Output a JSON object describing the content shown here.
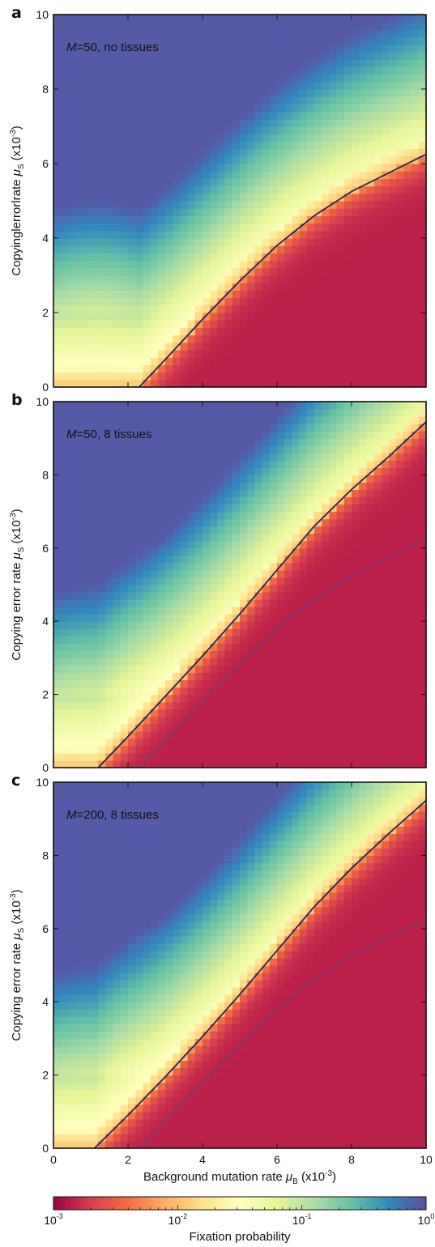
{
  "figure": {
    "colorbar": {
      "label": "Fixation probability",
      "tick_labels": [
        {
          "base": "10",
          "exp": "-3",
          "value": 0.001
        },
        {
          "base": "10",
          "exp": "-2",
          "value": 0.01
        },
        {
          "base": "10",
          "exp": "-1",
          "value": 0.1
        },
        {
          "base": "10",
          "exp": "0",
          "value": 1
        }
      ],
      "scale": "log",
      "range": [
        0.001,
        1
      ],
      "colormap": [
        "#9e0142",
        "#d53e4f",
        "#f46d43",
        "#fdae61",
        "#fee08b",
        "#ffffbf",
        "#e6f598",
        "#abdda4",
        "#66c2a5",
        "#3288bd",
        "#5e4fa2"
      ]
    }
  },
  "chart_data": [
    {
      "type": "heatmap",
      "panel_letter": "a",
      "annotation": {
        "italic": "M",
        "text": "=50, no tissues"
      },
      "xlabel": "",
      "ylabel": {
        "pre": "Copyinglerrorlrate ",
        "sym": "μ",
        "sub": "S",
        "mid": " (x10",
        "sup": "-3",
        "post": ")"
      },
      "xlim": [
        0,
        10
      ],
      "ylim": [
        0,
        10
      ],
      "xticks": [
        "0",
        "2",
        "4",
        "6",
        "8",
        "10"
      ],
      "yticks": [
        "0",
        "2",
        "4",
        "6",
        "8",
        "10"
      ],
      "show_xtick_labels": false,
      "solid_curve": {
        "x": [
          2.3,
          3,
          4,
          5,
          6,
          7,
          8,
          9,
          10
        ],
        "y": [
          0,
          0.74,
          1.82,
          2.85,
          3.8,
          4.6,
          5.25,
          5.75,
          6.25
        ]
      },
      "dashed_curve": null
    },
    {
      "type": "heatmap",
      "panel_letter": "b",
      "annotation": {
        "italic": "M",
        "text": "=50, 8 tissues"
      },
      "xlabel": "",
      "ylabel": {
        "pre": "Copying error rate ",
        "sym": "μ",
        "sub": "S",
        "mid": " (x10",
        "sup": "-3",
        "post": ")"
      },
      "xlim": [
        0,
        10
      ],
      "ylim": [
        0,
        10
      ],
      "xticks": [
        "0",
        "2",
        "4",
        "6",
        "8",
        "10"
      ],
      "yticks": [
        "0",
        "2",
        "4",
        "6",
        "8",
        "10"
      ],
      "show_xtick_labels": false,
      "solid_curve": {
        "x": [
          1.2,
          2,
          3,
          4,
          5,
          6,
          7,
          8,
          9,
          10
        ],
        "y": [
          0,
          0.85,
          1.95,
          3.05,
          4.2,
          5.4,
          6.6,
          7.6,
          8.5,
          9.45
        ]
      },
      "dashed_curve": {
        "x": [
          2.3,
          3,
          4,
          5,
          6,
          7,
          8,
          9,
          10
        ],
        "y": [
          0,
          0.74,
          1.82,
          2.85,
          3.8,
          4.6,
          5.25,
          5.75,
          6.25
        ]
      }
    },
    {
      "type": "heatmap",
      "panel_letter": "c",
      "annotation": {
        "italic": "M",
        "text": "=200, 8 tissues"
      },
      "xlabel": {
        "pre": "Background mutation rate ",
        "sym": "μ",
        "sub": "B",
        "mid": " (x10",
        "sup": "-3",
        "post": ")"
      },
      "ylabel": {
        "pre": "Copying error rate ",
        "sym": "μ",
        "sub": "S",
        "mid": " (x10",
        "sup": "-3",
        "post": ")"
      },
      "xlim": [
        0,
        10
      ],
      "ylim": [
        0,
        10
      ],
      "xticks": [
        "0",
        "2",
        "4",
        "6",
        "8",
        "10"
      ],
      "yticks": [
        "0",
        "2",
        "4",
        "6",
        "8",
        "10"
      ],
      "show_xtick_labels": true,
      "solid_curve": {
        "x": [
          1.1,
          2,
          3,
          4,
          5,
          6,
          7,
          8,
          9,
          10
        ],
        "y": [
          0,
          0.9,
          1.95,
          3.05,
          4.2,
          5.4,
          6.6,
          7.65,
          8.6,
          9.5
        ]
      },
      "dashed_curve": {
        "x": [
          2.3,
          3,
          4,
          5,
          6,
          7,
          8,
          9,
          10
        ],
        "y": [
          0,
          0.74,
          1.82,
          2.85,
          3.8,
          4.6,
          5.25,
          5.75,
          6.25
        ]
      }
    }
  ]
}
